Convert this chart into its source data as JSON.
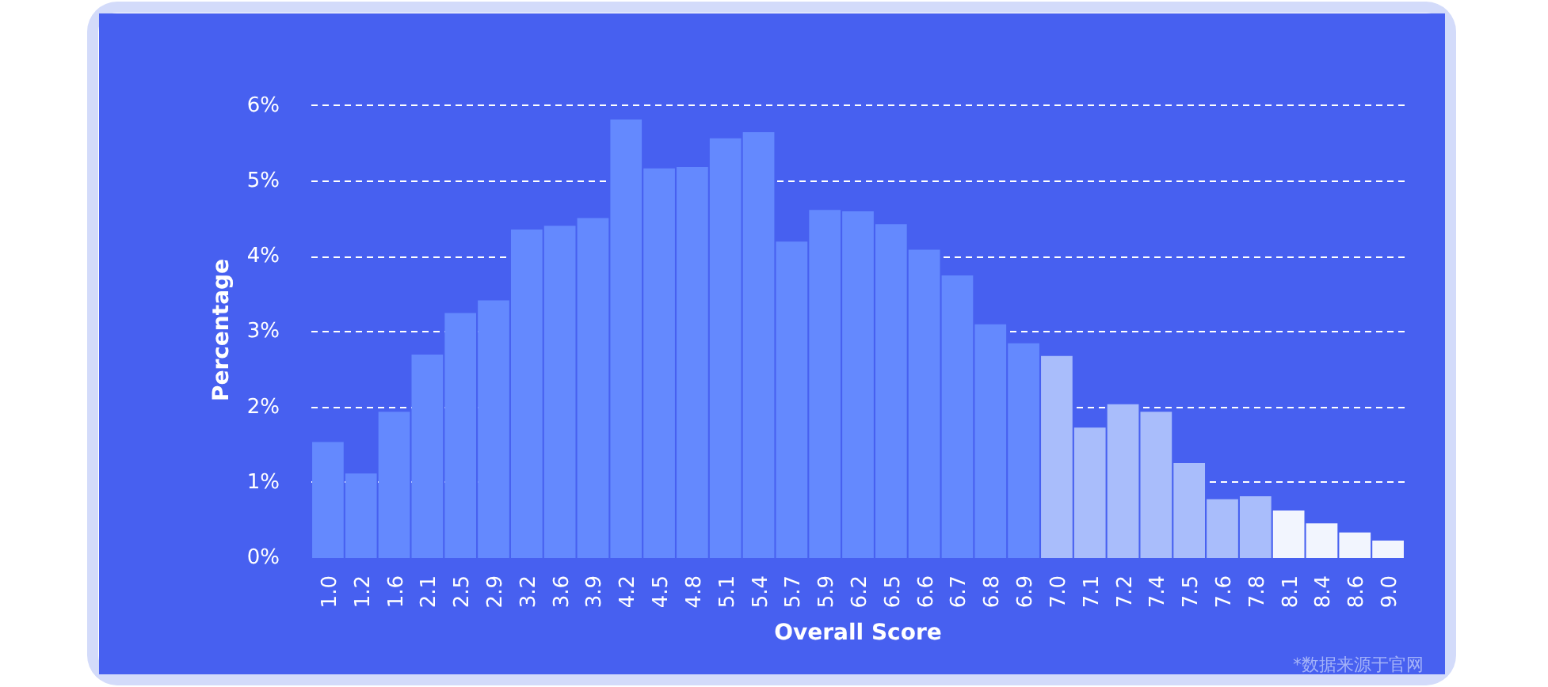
{
  "chart_data": {
    "type": "bar",
    "xlabel": "Overall Score",
    "ylabel": "Percentage",
    "categories": [
      "1.0",
      "1.2",
      "1.6",
      "2.1",
      "2.5",
      "2.9",
      "3.2",
      "3.6",
      "3.9",
      "4.2",
      "4.5",
      "4.8",
      "5.1",
      "5.4",
      "5.7",
      "5.9",
      "6.2",
      "6.5",
      "6.6",
      "6.7",
      "6.8",
      "6.9",
      "7.0",
      "7.1",
      "7.2",
      "7.4",
      "7.5",
      "7.6",
      "7.8",
      "8.1",
      "8.4",
      "8.6",
      "9.0"
    ],
    "values": [
      1.54,
      1.12,
      1.94,
      2.7,
      3.25,
      3.42,
      4.36,
      4.41,
      4.51,
      5.82,
      5.17,
      5.19,
      5.57,
      5.65,
      4.2,
      4.62,
      4.6,
      4.43,
      4.09,
      3.75,
      3.1,
      2.85,
      2.68,
      1.73,
      2.04,
      1.94,
      1.26,
      0.78,
      0.82,
      0.63,
      0.46,
      0.34,
      0.23
    ],
    "colors": [
      "#6489fe",
      "#6489fe",
      "#6489fe",
      "#6489fe",
      "#6489fe",
      "#6489fe",
      "#6489fe",
      "#6489fe",
      "#6489fe",
      "#6489fe",
      "#6489fe",
      "#6489fe",
      "#6489fe",
      "#6489fe",
      "#6489fe",
      "#6489fe",
      "#6489fe",
      "#6489fe",
      "#6489fe",
      "#6489fe",
      "#6489fe",
      "#6489fe",
      "#a9bdfb",
      "#a9bdfb",
      "#a9bdfb",
      "#a9bdfb",
      "#a9bdfb",
      "#a9bdfb",
      "#a9bdfb",
      "#f2f5fe",
      "#f2f5fe",
      "#f2f5fe",
      "#f2f5fe"
    ],
    "ylim": [
      0,
      6.05
    ],
    "yticks": [
      {
        "value": 0,
        "label": "0%"
      },
      {
        "value": 1,
        "label": "1%"
      },
      {
        "value": 2,
        "label": "2%"
      },
      {
        "value": 3,
        "label": "3%"
      },
      {
        "value": 4,
        "label": "4%"
      },
      {
        "value": 5,
        "label": "5%"
      },
      {
        "value": 6,
        "label": "6%"
      }
    ],
    "grid": "y",
    "annotations": [
      "*数据来源于官网"
    ]
  }
}
